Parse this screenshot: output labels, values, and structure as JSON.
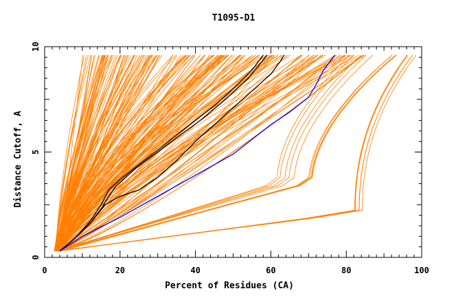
{
  "chart_data": {
    "type": "line",
    "title": "T1095-D1",
    "xlabel": "Percent of Residues (CA)",
    "ylabel": "Distance Cutoff, A",
    "xlim": [
      0,
      100
    ],
    "ylim": [
      0,
      10
    ],
    "x_ticks": [
      "0",
      "20",
      "40",
      "60",
      "80",
      "100"
    ],
    "y_ticks": [
      "0",
      "5",
      "10"
    ],
    "grid": false,
    "legend": "none",
    "colors": {
      "bundle": "#ff7f00",
      "highlight": "#000000",
      "reference": "#0000ff",
      "axis": "#000000"
    },
    "bundle_count": 200,
    "bundle_note": "",
    "series": [
      {
        "color": "highlight",
        "x": [
          4,
          8,
          12,
          15,
          17,
          20,
          25,
          30,
          35,
          40,
          45,
          50,
          55,
          58
        ],
        "y": [
          0.3,
          0.9,
          1.7,
          2.5,
          3.2,
          3.7,
          4.4,
          5.1,
          5.8,
          6.5,
          7.2,
          8.0,
          8.9,
          9.6
        ]
      },
      {
        "color": "highlight",
        "x": [
          4,
          8,
          12,
          15,
          17,
          19,
          24,
          30,
          36,
          42,
          48,
          54,
          59
        ],
        "y": [
          0.3,
          0.9,
          1.6,
          2.3,
          2.9,
          3.4,
          4.2,
          5.0,
          5.8,
          6.6,
          7.5,
          8.5,
          9.6
        ]
      },
      {
        "color": "highlight",
        "x": [
          4,
          8,
          12,
          16,
          20,
          25,
          30,
          35,
          40,
          45,
          50,
          55,
          60,
          62.5,
          63.5
        ],
        "y": [
          0.3,
          0.9,
          1.6,
          2.5,
          2.9,
          3.2,
          3.8,
          4.6,
          5.5,
          6.3,
          7.1,
          7.9,
          8.7,
          9.3,
          9.6
        ]
      },
      {
        "color": "reference",
        "x": [
          4,
          10,
          20,
          30,
          40,
          50,
          55,
          60,
          65,
          70,
          72,
          74,
          77
        ],
        "y": [
          0.3,
          1.0,
          1.9,
          2.9,
          3.9,
          4.9,
          5.6,
          6.3,
          6.9,
          7.6,
          8.2,
          8.9,
          9.6
        ]
      }
    ]
  }
}
